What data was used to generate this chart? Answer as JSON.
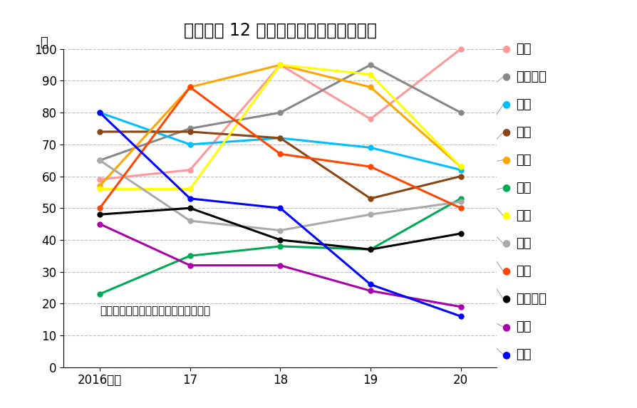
{
  "title": "奈良県内 12 市の生活保護の申請率推移",
  "xlabel_ticks": [
    "2016年度",
    "17",
    "18",
    "19",
    "20"
  ],
  "x_values": [
    2016,
    2017,
    2018,
    2019,
    2020
  ],
  "ylabel": "％",
  "ylim": [
    0,
    100
  ],
  "yticks": [
    0,
    10,
    20,
    30,
    40,
    50,
    60,
    70,
    80,
    90,
    100
  ],
  "annotation": "各市の資料を基に「奈良の声」が作成",
  "series": [
    {
      "name": "五條",
      "color": "#ff9999",
      "values": [
        59,
        62,
        95,
        78,
        100
      ]
    },
    {
      "name": "大和高田",
      "color": "#888888",
      "values": [
        65,
        75,
        80,
        95,
        80
      ]
    },
    {
      "name": "御所",
      "color": "#00bfff",
      "values": [
        80,
        70,
        72,
        69,
        62
      ]
    },
    {
      "name": "天理",
      "color": "#8B4513",
      "values": [
        74,
        74,
        72,
        53,
        60
      ]
    },
    {
      "name": "桜井",
      "color": "#FFA500",
      "values": [
        57,
        88,
        95,
        88,
        63
      ]
    },
    {
      "name": "香芝",
      "color": "#00AA55",
      "values": [
        23,
        35,
        38,
        37,
        53
      ]
    },
    {
      "name": "葛城",
      "color": "#FFFF00",
      "values": [
        56,
        56,
        95,
        92,
        63
      ]
    },
    {
      "name": "奈良",
      "color": "#AAAAAA",
      "values": [
        65,
        46,
        43,
        48,
        52
      ]
    },
    {
      "name": "宇陀",
      "color": "#FF4500",
      "values": [
        50,
        88,
        67,
        63,
        50
      ]
    },
    {
      "name": "大和郡山",
      "color": "#000000",
      "values": [
        48,
        50,
        40,
        37,
        42
      ]
    },
    {
      "name": "橿原",
      "color": "#AA00AA",
      "values": [
        45,
        32,
        32,
        24,
        19
      ]
    },
    {
      "name": "生駒",
      "color": "#0000FF",
      "values": [
        80,
        53,
        50,
        26,
        16
      ]
    }
  ],
  "background_color": "#ffffff",
  "grid_color": "#bbbbbb",
  "title_fontsize": 17,
  "annotation_fontsize": 11,
  "legend_fontsize": 13,
  "marker_size": 5,
  "line_width": 2.2
}
